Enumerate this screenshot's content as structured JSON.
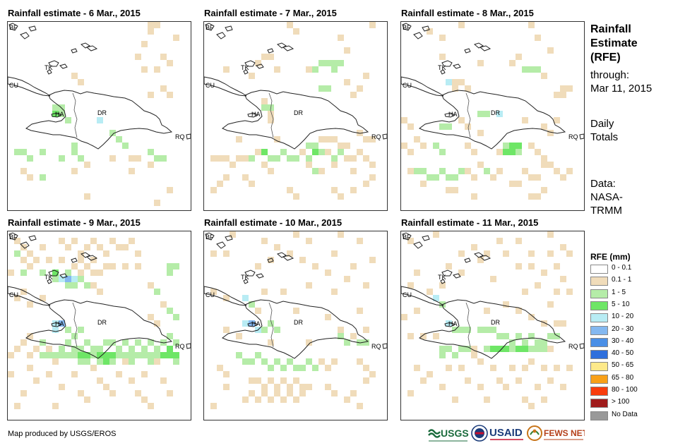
{
  "panels": [
    {
      "title": "Rainfall estimate - 6 Mar., 2015"
    },
    {
      "title": "Rainfall estimate - 7 Mar., 2015"
    },
    {
      "title": "Rainfall estimate - 8 Mar., 2015"
    },
    {
      "title": "Rainfall estimate - 9 Mar., 2015"
    },
    {
      "title": "Rainfall estimate - 10 Mar., 2015"
    },
    {
      "title": "Rainfall estimate - 11 Mar., 2015"
    }
  ],
  "map_labels": {
    "bf": "BF",
    "tk": "TK",
    "cu": "CU",
    "ha": "HA",
    "dr": "DR",
    "rq": "RQ"
  },
  "side_panel": {
    "title_line1": "Rainfall",
    "title_line2": "Estimate",
    "title_line3": "(RFE)",
    "through_label": "through:",
    "through_date": "Mar 11, 2015",
    "daily_line1": "Daily",
    "daily_line2": "Totals",
    "data_line1": "Data:",
    "data_line2": "NASA-",
    "data_line3": "TRMM"
  },
  "legend": {
    "title": "RFE (mm)",
    "items": [
      {
        "label": "0 - 0.1",
        "color": "#ffffff"
      },
      {
        "label": "0.1 - 1",
        "color": "#f0dcba"
      },
      {
        "label": "1 - 5",
        "color": "#b5eca8"
      },
      {
        "label": "5 - 10",
        "color": "#6ee666"
      },
      {
        "label": "10 - 20",
        "color": "#b8ecf4"
      },
      {
        "label": "20 - 30",
        "color": "#84b8f0"
      },
      {
        "label": "30 - 40",
        "color": "#4a8fe6"
      },
      {
        "label": "40 - 50",
        "color": "#2f6fdc"
      },
      {
        "label": "50 - 65",
        "color": "#fde98a"
      },
      {
        "label": "65 - 80",
        "color": "#f8a018"
      },
      {
        "label": "80 - 100",
        "color": "#f83c0c"
      },
      {
        "label": "> 100",
        "color": "#a01c1c"
      },
      {
        "label": "No Data",
        "color": "#999999"
      }
    ]
  },
  "footer": {
    "credit": "Map produced by USGS/EROS",
    "logo_usgs": "USGS",
    "logo_usaid": "USAID",
    "logo_fewsnet": "FEWS NET"
  }
}
